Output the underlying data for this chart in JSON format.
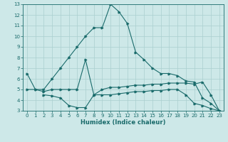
{
  "xlabel": "Humidex (Indice chaleur)",
  "xlim": [
    -0.5,
    23.5
  ],
  "ylim": [
    3,
    13
  ],
  "xticks": [
    0,
    1,
    2,
    3,
    4,
    5,
    6,
    7,
    8,
    9,
    10,
    11,
    12,
    13,
    14,
    15,
    16,
    17,
    18,
    19,
    20,
    21,
    22,
    23
  ],
  "yticks": [
    3,
    4,
    5,
    6,
    7,
    8,
    9,
    10,
    11,
    12,
    13
  ],
  "bg_color": "#cde8e8",
  "grid_color": "#aacfcf",
  "line_color": "#1a6b6b",
  "curve1_x": [
    0,
    1,
    2,
    3,
    4,
    5,
    6,
    7,
    8,
    9,
    10,
    11,
    12,
    13,
    14,
    15,
    16,
    17,
    18,
    19,
    20,
    21,
    22,
    23
  ],
  "curve1_y": [
    6.5,
    5.0,
    5.0,
    6.0,
    7.0,
    8.0,
    9.0,
    10.0,
    10.8,
    10.8,
    13.0,
    12.3,
    11.2,
    8.5,
    7.8,
    7.0,
    6.5,
    6.5,
    6.3,
    5.8,
    5.7,
    4.2,
    3.7,
    3.0
  ],
  "curve2_x": [
    0,
    1,
    2,
    3,
    4,
    5,
    6,
    7,
    8,
    9,
    10,
    11,
    12,
    13,
    14,
    15,
    16,
    17,
    18,
    19,
    20,
    21,
    22,
    23
  ],
  "curve2_y": [
    5.0,
    5.0,
    4.8,
    5.0,
    5.0,
    5.0,
    5.0,
    7.8,
    4.5,
    5.0,
    5.2,
    5.2,
    5.3,
    5.4,
    5.4,
    5.5,
    5.5,
    5.6,
    5.6,
    5.6,
    5.5,
    5.7,
    4.5,
    3.0
  ],
  "curve3_x": [
    2,
    3,
    4,
    5,
    6,
    7,
    8,
    9,
    10,
    11,
    12,
    13,
    14,
    15,
    16,
    17,
    18,
    19,
    20,
    21,
    22,
    23
  ],
  "curve3_y": [
    4.5,
    4.4,
    4.2,
    3.5,
    3.3,
    3.3,
    4.5,
    4.5,
    4.5,
    4.6,
    4.7,
    4.8,
    4.8,
    4.9,
    4.9,
    5.0,
    5.0,
    4.5,
    3.7,
    3.5,
    3.2,
    3.0
  ]
}
